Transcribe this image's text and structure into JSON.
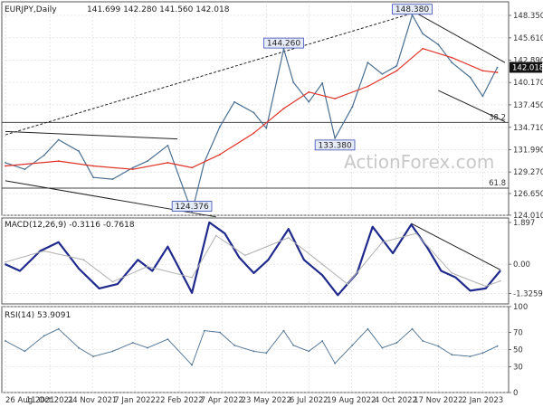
{
  "chart_data": [
    {
      "type": "line",
      "panel": "price",
      "title": "EURJPY,Daily",
      "ohlc": "141.699 142.280 141.560 142.018",
      "last_price": "142.018",
      "ylim": [
        124.0,
        150.0
      ],
      "ticks": [
        "148.350",
        "145.610",
        "142.890",
        "140.170",
        "137.450",
        "134.710",
        "131.990",
        "129.270",
        "126.650",
        "124.010"
      ],
      "fib_levels": [
        {
          "value": 135.3,
          "label": "38.2"
        },
        {
          "value": 127.3,
          "label": "61.8"
        }
      ],
      "annotations": [
        {
          "label": "148.380",
          "date": "2022-10-21",
          "value": 148.38
        },
        {
          "label": "144.260",
          "date": "2022-06-10",
          "value": 144.26
        },
        {
          "label": "133.380",
          "date": "2022-08-02",
          "value": 133.38
        },
        {
          "label": "124.376",
          "date": "2022-03-07",
          "value": 124.376
        }
      ],
      "series": [
        {
          "label": "price",
          "x": [
            "2021-08-26",
            "2021-09-15",
            "2021-10-05",
            "2021-10-20",
            "2021-11-10",
            "2021-11-25",
            "2021-12-15",
            "2022-01-05",
            "2022-01-20",
            "2022-02-10",
            "2022-03-07",
            "2022-03-20",
            "2022-04-05",
            "2022-04-20",
            "2022-05-10",
            "2022-05-23",
            "2022-06-10",
            "2022-06-20",
            "2022-07-06",
            "2022-07-20",
            "2022-08-02",
            "2022-08-20",
            "2022-09-05",
            "2022-09-20",
            "2022-10-05",
            "2022-10-21",
            "2022-11-01",
            "2022-11-17",
            "2022-12-01",
            "2022-12-20",
            "2023-01-02",
            "2023-01-17"
          ],
          "y": [
            130.4,
            129.6,
            131.3,
            133.2,
            131.8,
            128.6,
            128.4,
            129.8,
            130.6,
            132.5,
            124.38,
            130.5,
            134.8,
            137.8,
            136.5,
            134.6,
            144.26,
            140.2,
            137.8,
            140.1,
            133.38,
            137.2,
            142.6,
            141.2,
            142.2,
            148.38,
            146.1,
            144.8,
            142.6,
            140.8,
            138.5,
            142.0
          ]
        },
        {
          "label": "moving average",
          "x": [
            "2021-08-26",
            "2021-10-20",
            "2021-11-25",
            "2022-01-05",
            "2022-02-10",
            "2022-03-07",
            "2022-04-05",
            "2022-05-10",
            "2022-06-10",
            "2022-07-06",
            "2022-08-02",
            "2022-09-05",
            "2022-10-05",
            "2022-11-01",
            "2022-12-01",
            "2023-01-02",
            "2023-01-17"
          ],
          "y": [
            130.0,
            130.6,
            130.0,
            129.6,
            130.4,
            129.8,
            131.4,
            134.0,
            137.0,
            139.0,
            138.2,
            139.7,
            141.6,
            144.3,
            143.2,
            141.6,
            141.4
          ]
        }
      ],
      "trendlines": [
        {
          "x": [
            "2021-08-26",
            "2022-10-21"
          ],
          "y": [
            133.8,
            148.6
          ]
        },
        {
          "x": [
            "2021-08-26",
            "2022-02-20"
          ],
          "y": [
            134.2,
            133.3
          ]
        },
        {
          "x": [
            "2021-08-26",
            "2022-04-01"
          ],
          "y": [
            128.2,
            123.8
          ]
        },
        {
          "x": [
            "2022-10-21",
            "2023-01-25"
          ],
          "y": [
            148.9,
            142.6
          ]
        },
        {
          "x": [
            "2022-11-17",
            "2023-01-25"
          ],
          "y": [
            139.2,
            135.4
          ]
        }
      ]
    },
    {
      "type": "line",
      "panel": "macd",
      "title": "MACD(12,26,9) -0.3116 -0.7618",
      "ylim": [
        -1.8,
        2.1
      ],
      "ticks": [
        "1.897",
        "0.00",
        "-1.3259"
      ],
      "series": [
        {
          "label": "macd",
          "x": [
            "2021-08-26",
            "2021-09-10",
            "2021-10-01",
            "2021-10-20",
            "2021-11-10",
            "2021-12-01",
            "2021-12-20",
            "2022-01-10",
            "2022-01-25",
            "2022-02-10",
            "2022-03-07",
            "2022-03-25",
            "2022-04-10",
            "2022-04-25",
            "2022-05-10",
            "2022-05-25",
            "2022-06-15",
            "2022-07-01",
            "2022-07-20",
            "2022-08-05",
            "2022-08-25",
            "2022-09-10",
            "2022-10-01",
            "2022-10-20",
            "2022-11-05",
            "2022-11-20",
            "2022-12-05",
            "2022-12-20",
            "2023-01-05",
            "2023-01-20"
          ],
          "y": [
            0.0,
            -0.3,
            0.6,
            1.0,
            -0.2,
            -1.1,
            -0.9,
            0.2,
            -0.3,
            0.8,
            -1.3,
            1.9,
            1.4,
            0.3,
            -0.4,
            0.2,
            1.6,
            0.2,
            -0.5,
            -1.4,
            -0.4,
            1.7,
            0.5,
            1.8,
            0.8,
            -0.3,
            -0.6,
            -1.2,
            -1.1,
            -0.3
          ]
        },
        {
          "label": "signal",
          "x": [
            "2021-08-26",
            "2021-10-05",
            "2021-11-15",
            "2021-12-15",
            "2022-01-20",
            "2022-03-07",
            "2022-04-01",
            "2022-05-01",
            "2022-06-15",
            "2022-07-20",
            "2022-08-15",
            "2022-09-20",
            "2022-10-25",
            "2022-12-01",
            "2023-01-05",
            "2023-01-20"
          ],
          "y": [
            0.1,
            0.6,
            0.2,
            -0.8,
            -0.1,
            -0.6,
            1.3,
            0.4,
            1.2,
            0.0,
            -0.9,
            1.0,
            1.4,
            -0.4,
            -1.0,
            -0.76
          ]
        }
      ],
      "trendlines": [
        {
          "x": [
            "2022-10-20",
            "2023-01-20"
          ],
          "y": [
            1.85,
            -0.25
          ]
        }
      ]
    },
    {
      "type": "line",
      "panel": "rsi",
      "title": "RSI(14) 53.9091",
      "ylim": [
        0,
        100
      ],
      "ticks": [
        "100",
        "70",
        "50",
        "30",
        "0"
      ],
      "series": [
        {
          "label": "rsi",
          "x": [
            "2021-08-26",
            "2021-09-15",
            "2021-10-05",
            "2021-10-20",
            "2021-11-10",
            "2021-11-25",
            "2021-12-15",
            "2022-01-05",
            "2022-01-20",
            "2022-02-10",
            "2022-03-07",
            "2022-03-20",
            "2022-04-05",
            "2022-04-20",
            "2022-05-10",
            "2022-05-23",
            "2022-06-10",
            "2022-06-20",
            "2022-07-06",
            "2022-07-20",
            "2022-08-02",
            "2022-08-20",
            "2022-09-05",
            "2022-09-20",
            "2022-10-05",
            "2022-10-21",
            "2022-11-01",
            "2022-11-17",
            "2022-12-01",
            "2022-12-20",
            "2023-01-02",
            "2023-01-17"
          ],
          "y": [
            60,
            48,
            66,
            74,
            52,
            42,
            48,
            58,
            52,
            62,
            32,
            72,
            70,
            55,
            48,
            46,
            72,
            55,
            48,
            60,
            34,
            55,
            74,
            52,
            58,
            74,
            60,
            54,
            44,
            42,
            46,
            54
          ]
        }
      ]
    }
  ],
  "x_axis": {
    "labels": [
      "26 Aug 2021",
      "11 Oct 2021",
      "24 Nov 2021",
      "7 Jan 2022",
      "22 Feb 2022",
      "7 Apr 2022",
      "23 May 2022",
      "6 Jul 2022",
      "19 Aug 2022",
      "4 Oct 2022",
      "17 Nov 2022",
      "2 Jan 2023"
    ],
    "dates": [
      "2021-08-26",
      "2021-10-11",
      "2021-11-24",
      "2022-01-07",
      "2022-02-22",
      "2022-04-07",
      "2022-05-23",
      "2022-07-06",
      "2022-08-19",
      "2022-10-04",
      "2022-11-17",
      "2023-01-02"
    ]
  },
  "watermark": "ActionForex.com",
  "colors": {
    "price": "#4a6f91",
    "ma": "#e0342a",
    "macd": "#1f2a8c",
    "signal": "#b0b0b0",
    "rsi": "#4a6f91",
    "grid": "#d8d8d8",
    "label_bg": "#e6ecf7",
    "label_border": "#3a4ab8"
  }
}
